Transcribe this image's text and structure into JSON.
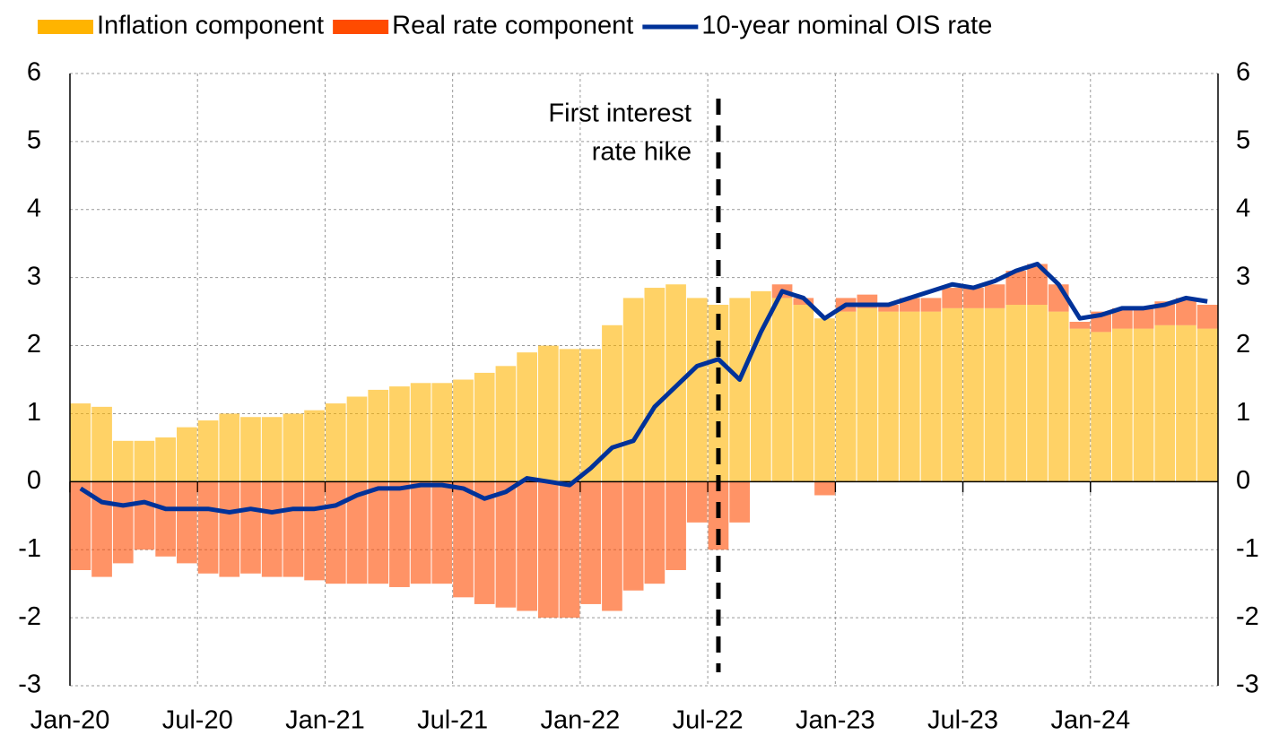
{
  "chart_data": {
    "type": "bar",
    "categories": [
      "Jan-20",
      null,
      null,
      null,
      null,
      null,
      "Jul-20",
      null,
      null,
      null,
      null,
      null,
      "Jan-21",
      null,
      null,
      null,
      null,
      null,
      "Jul-21",
      null,
      null,
      null,
      null,
      null,
      "Jan-22",
      null,
      null,
      null,
      null,
      null,
      "Jul-22",
      null,
      null,
      null,
      null,
      null,
      "Jan-23",
      null,
      null,
      null,
      null,
      null,
      "Jul-23",
      null,
      null,
      null,
      null,
      null,
      "Jan-24",
      null,
      null,
      null,
      null,
      null
    ],
    "series": [
      {
        "name": "Inflation component",
        "color": "#ffb400",
        "type": "bar",
        "values": [
          1.15,
          1.1,
          0.6,
          0.6,
          0.65,
          0.8,
          0.9,
          1.0,
          0.95,
          0.95,
          1.0,
          1.05,
          1.15,
          1.25,
          1.35,
          1.4,
          1.45,
          1.45,
          1.5,
          1.6,
          1.7,
          1.9,
          2.0,
          1.95,
          1.95,
          2.3,
          2.7,
          2.85,
          2.9,
          2.7,
          2.6,
          2.7,
          2.8,
          2.7,
          2.6,
          2.4,
          2.5,
          2.55,
          2.5,
          2.5,
          2.5,
          2.55,
          2.55,
          2.55,
          2.6,
          2.6,
          2.5,
          2.25,
          2.2,
          2.25,
          2.25,
          2.3,
          2.3,
          2.25
        ]
      },
      {
        "name": "Real rate component",
        "color": "#ff4b00",
        "type": "bar",
        "values": [
          -1.3,
          -1.4,
          -1.2,
          -1.0,
          -1.1,
          -1.2,
          -1.35,
          -1.4,
          -1.35,
          -1.4,
          -1.4,
          -1.45,
          -1.5,
          -1.5,
          -1.5,
          -1.55,
          -1.5,
          -1.5,
          -1.7,
          -1.8,
          -1.85,
          -1.9,
          -2.0,
          -2.0,
          -1.8,
          -1.9,
          -1.6,
          -1.5,
          -1.3,
          -0.6,
          -1.0,
          -0.6,
          0.0,
          0.2,
          0.1,
          -0.2,
          0.2,
          0.2,
          0.1,
          0.2,
          0.2,
          0.3,
          0.3,
          0.35,
          0.5,
          0.6,
          0.4,
          0.1,
          0.3,
          0.3,
          0.3,
          0.35,
          0.4,
          0.35
        ]
      },
      {
        "name": "10-year nominal OIS rate",
        "color": "#003299",
        "type": "line",
        "values": [
          -0.1,
          -0.3,
          -0.35,
          -0.3,
          -0.4,
          -0.4,
          -0.4,
          -0.45,
          -0.4,
          -0.45,
          -0.4,
          -0.4,
          -0.35,
          -0.2,
          -0.1,
          -0.1,
          -0.05,
          -0.05,
          -0.1,
          -0.25,
          -0.15,
          0.05,
          0.0,
          -0.05,
          0.2,
          0.5,
          0.6,
          1.1,
          1.4,
          1.7,
          1.8,
          1.5,
          2.2,
          2.8,
          2.7,
          2.4,
          2.6,
          2.6,
          2.6,
          2.7,
          2.8,
          2.9,
          2.85,
          2.95,
          3.1,
          3.2,
          2.9,
          2.4,
          2.45,
          2.55,
          2.55,
          2.6,
          2.7,
          2.65
        ]
      }
    ],
    "annotation": {
      "text": [
        "First interest",
        "rate hike"
      ],
      "x": "Jul-22"
    },
    "ylim": [
      -3,
      6
    ],
    "yticks": [
      -3,
      -2,
      -1,
      0,
      1,
      2,
      3,
      4,
      5,
      6
    ],
    "y2lim": [
      -3,
      6
    ],
    "y2ticks": [
      -3,
      -2,
      -1,
      0,
      1,
      2,
      3,
      4,
      5,
      6
    ],
    "grid": true,
    "legend": "top"
  }
}
